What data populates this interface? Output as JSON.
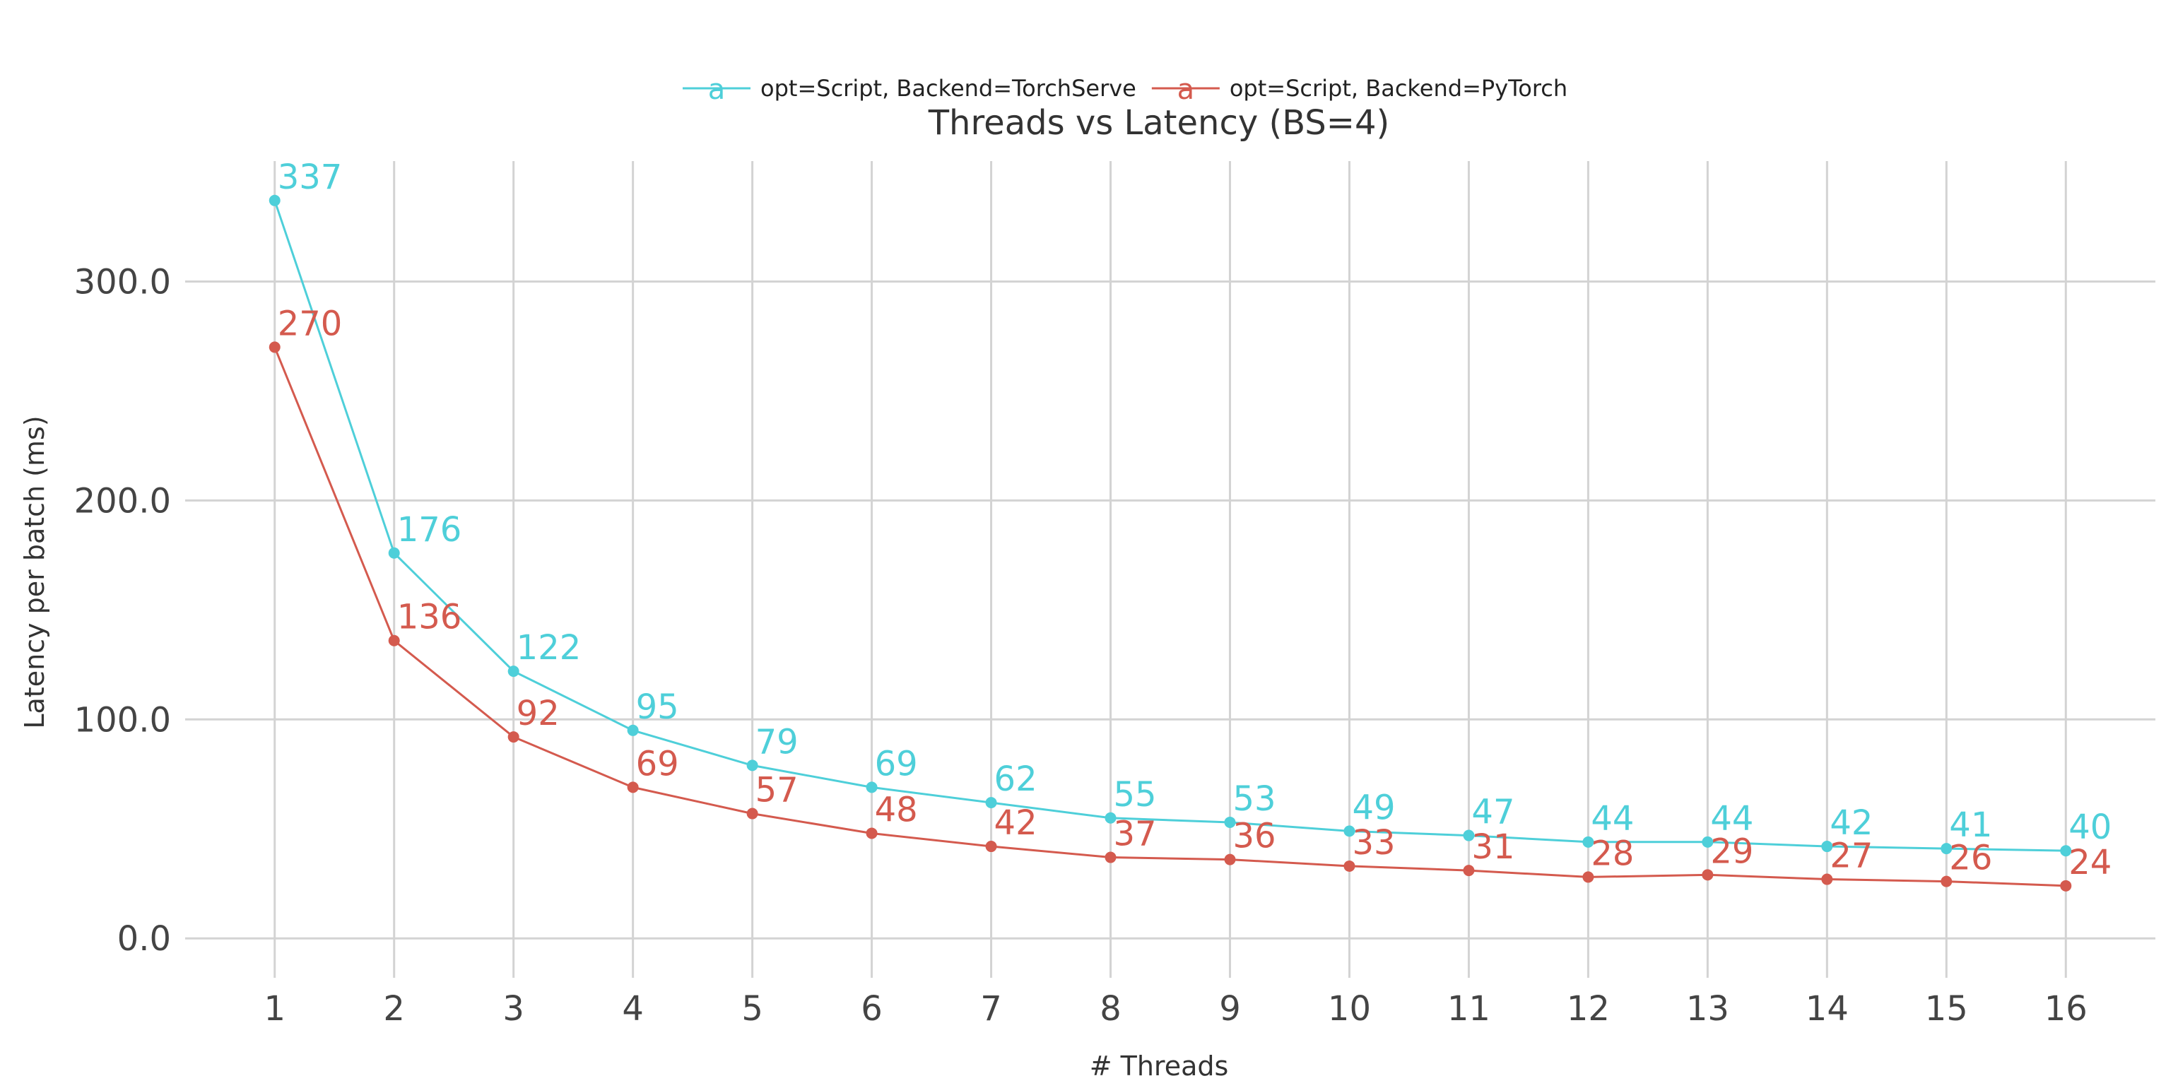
{
  "chart_data": {
    "type": "line",
    "title": "Threads vs Latency (BS=4)",
    "xlabel": "# Threads",
    "ylabel": "Latency per batch (ms)",
    "x": [
      1,
      2,
      3,
      4,
      5,
      6,
      7,
      8,
      9,
      10,
      11,
      12,
      13,
      14,
      15,
      16
    ],
    "x_tick_labels": [
      "1",
      "2",
      "3",
      "4",
      "5",
      "6",
      "7",
      "8",
      "9",
      "10",
      "11",
      "12",
      "13",
      "14",
      "15",
      "16"
    ],
    "y_ticks": [
      0,
      100,
      200,
      300
    ],
    "y_tick_labels": [
      "0.0",
      "100.0",
      "200.0",
      "300.0"
    ],
    "ylim": [
      -18,
      355
    ],
    "xlim": [
      0.25,
      16.75
    ],
    "grid": true,
    "legend_position": "top-center",
    "legend_glyph": "a",
    "series": [
      {
        "name": "opt=Script, Backend=TorchServe",
        "color": "#4ecfd9",
        "values": [
          337,
          176,
          122,
          95,
          79,
          69,
          62,
          55,
          53,
          49,
          47,
          44,
          44,
          42,
          41,
          40
        ],
        "labels": [
          "337",
          "176",
          "122",
          "95",
          "79",
          "69",
          "62",
          "55",
          "53",
          "49",
          "47",
          "44",
          "44",
          "42",
          "41",
          "40"
        ]
      },
      {
        "name": "opt=Script, Backend=PyTorch",
        "color": "#d45a4e",
        "values": [
          270,
          136,
          92,
          69,
          57,
          48,
          42,
          37,
          36,
          33,
          31,
          28,
          29,
          27,
          26,
          24
        ],
        "labels": [
          "270",
          "136",
          "92",
          "69",
          "57",
          "48",
          "42",
          "37",
          "36",
          "33",
          "31",
          "28",
          "29",
          "27",
          "26",
          "24"
        ]
      }
    ]
  }
}
